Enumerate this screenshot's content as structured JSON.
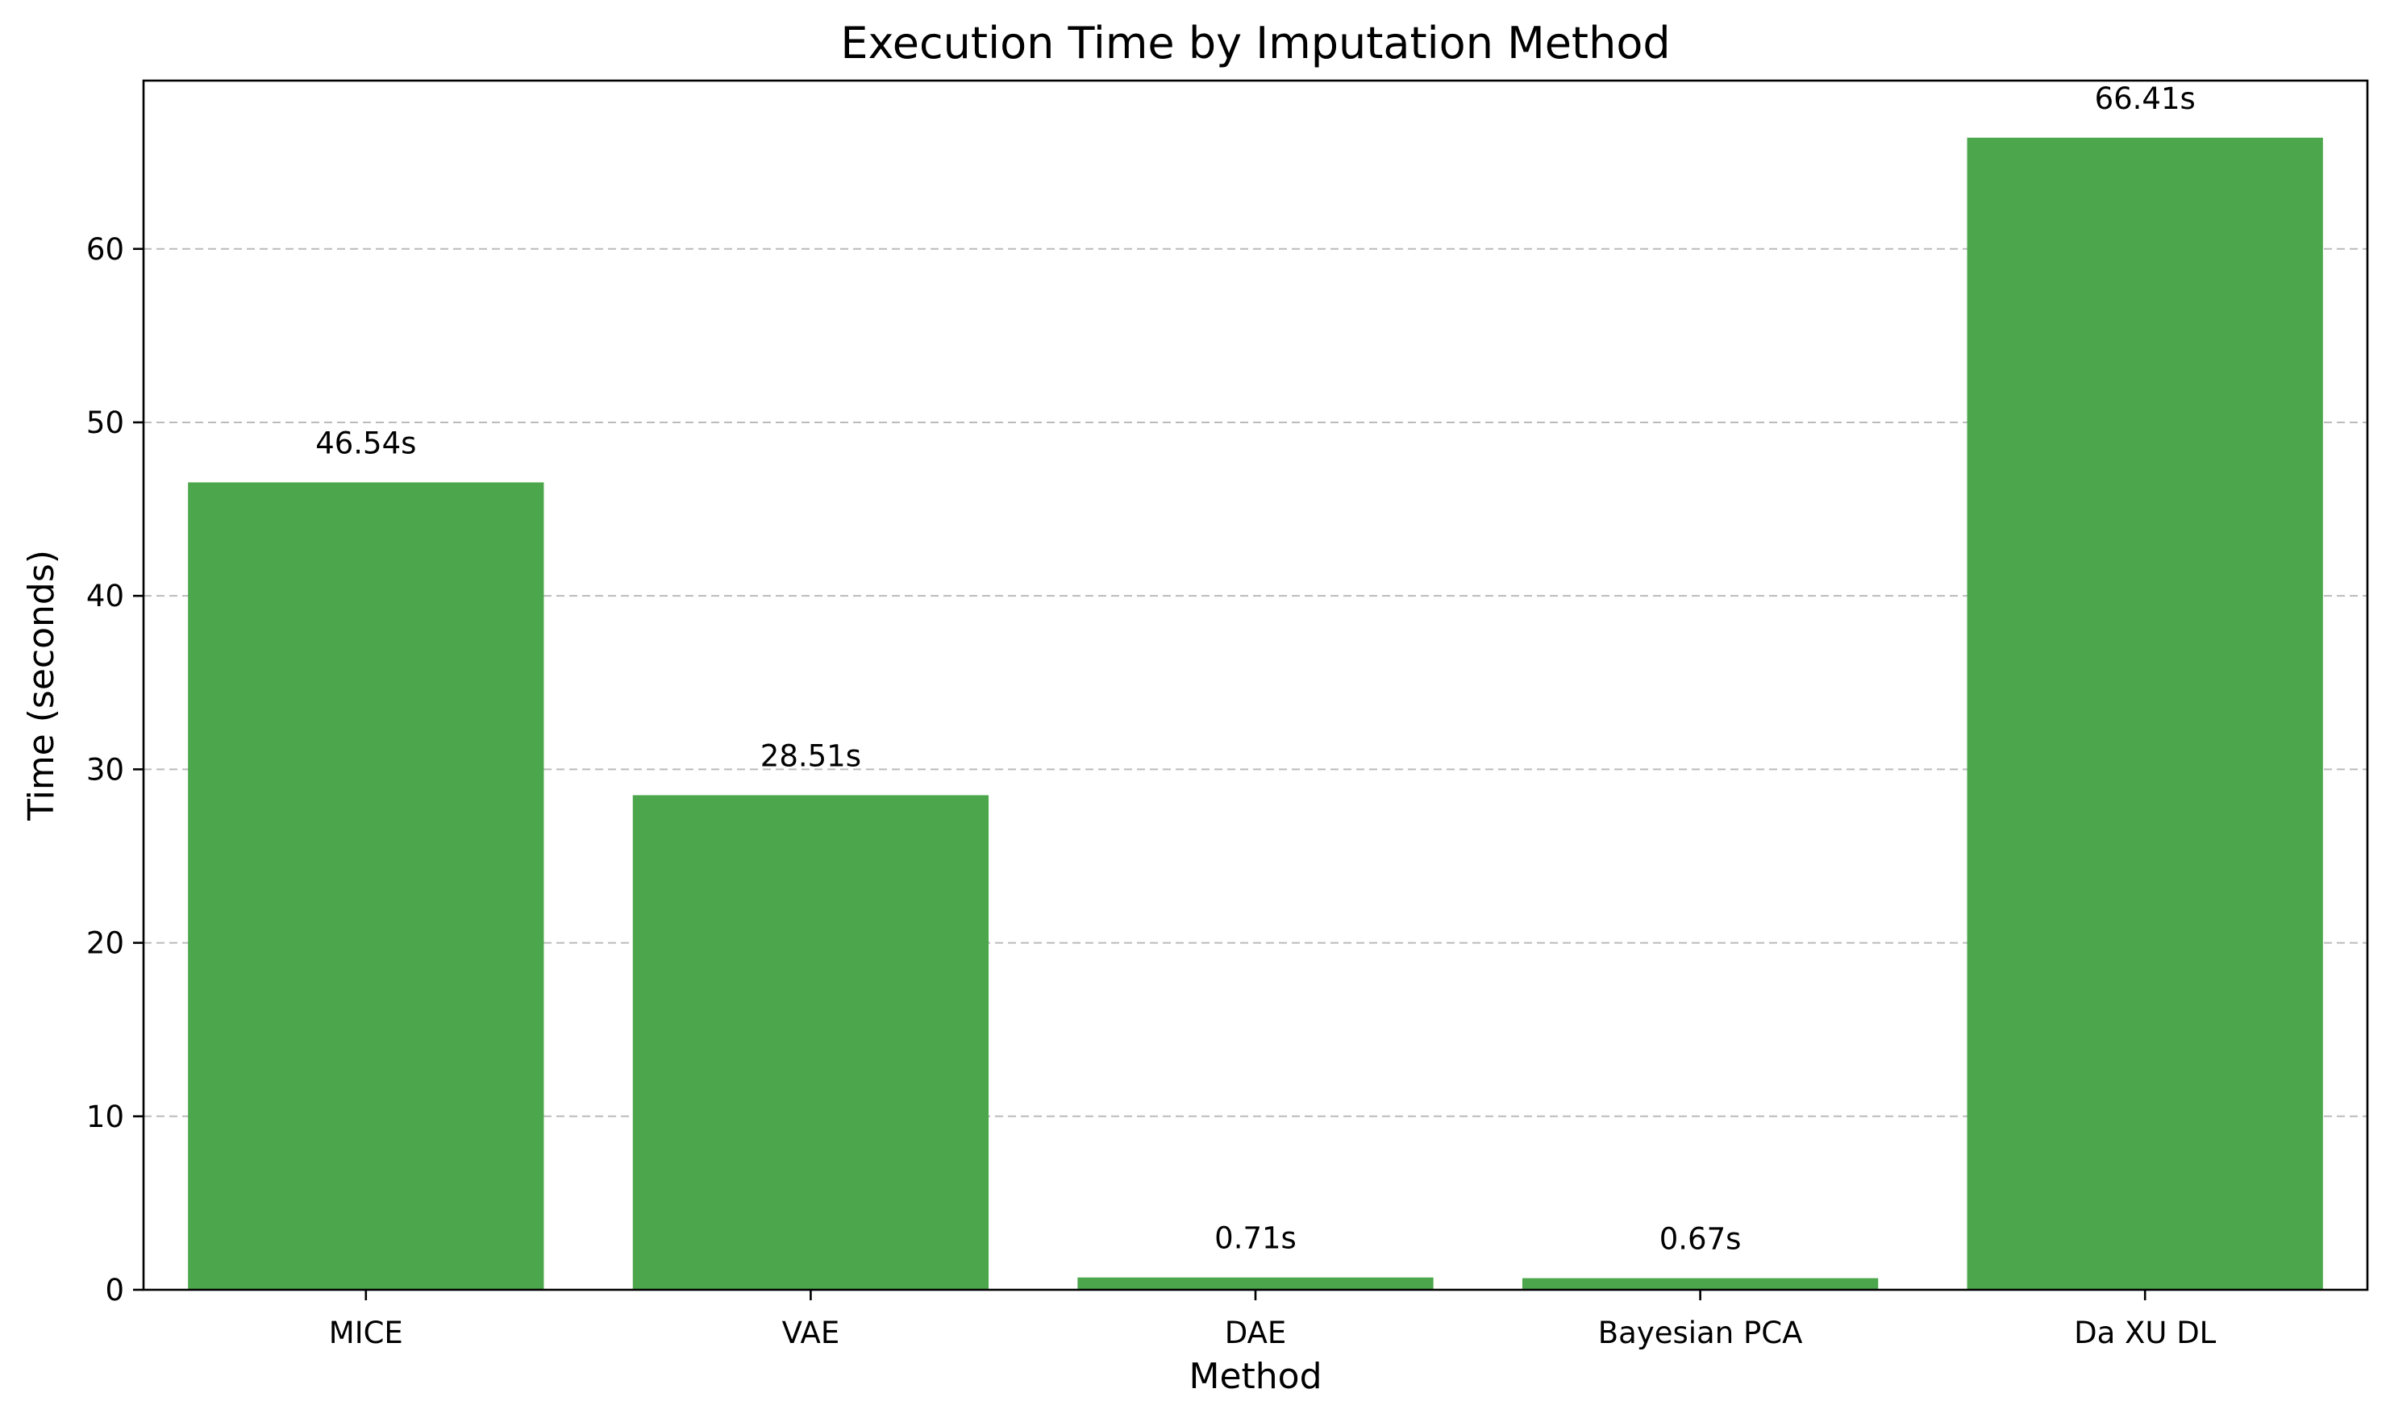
{
  "chart_data": {
    "type": "bar",
    "title": "Execution Time by Imputation Method",
    "xlabel": "Method",
    "ylabel": "Time (seconds)",
    "categories": [
      "MICE",
      "VAE",
      "DAE",
      "Bayesian PCA",
      "Da XU DL"
    ],
    "values": [
      46.54,
      28.51,
      0.71,
      0.67,
      66.41
    ],
    "value_labels": [
      "46.54s",
      "28.51s",
      "0.71s",
      "0.67s",
      "66.41s"
    ],
    "yticks": [
      "0",
      "10",
      "20",
      "30",
      "40",
      "50",
      "60"
    ],
    "ylim": [
      0,
      69.7
    ],
    "grid": "y-axis dashed",
    "bar_color": "#4ca64c"
  }
}
